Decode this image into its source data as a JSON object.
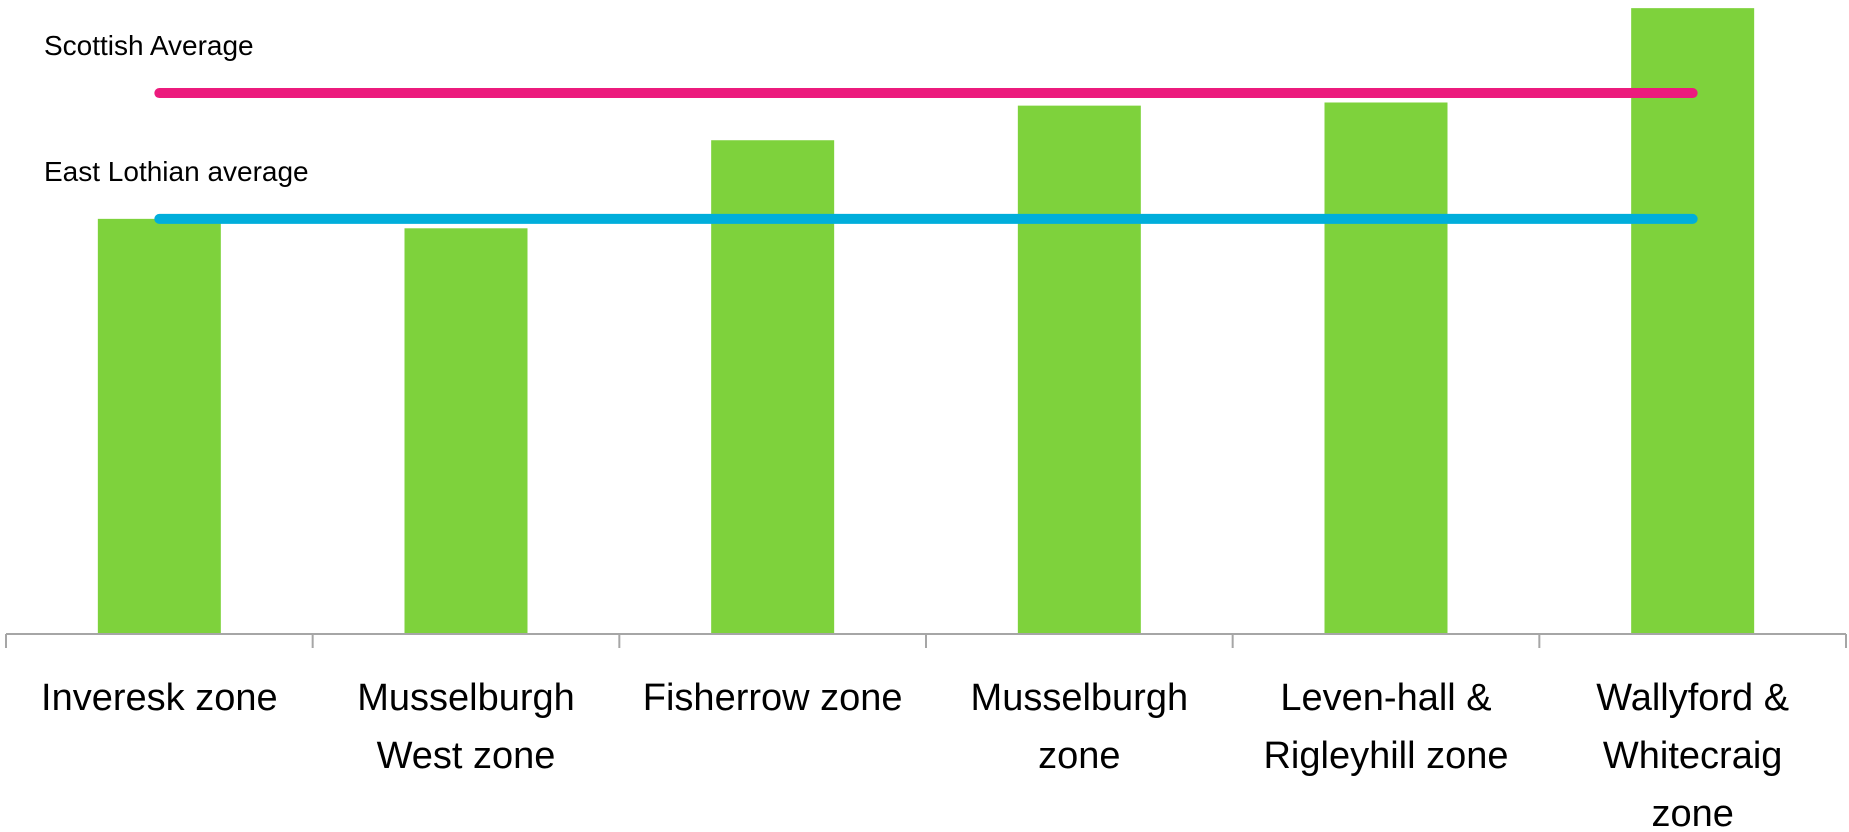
{
  "chart_data": {
    "type": "bar",
    "categories": [
      [
        "Inveresk zone"
      ],
      [
        "Musselburgh",
        "West zone"
      ],
      [
        "Fisherrow zone"
      ],
      [
        "Musselburgh",
        "zone"
      ],
      [
        "Leven-hall &",
        "Rigleyhill zone"
      ],
      [
        "Wallyford &",
        "Whitecraig",
        "zone"
      ]
    ],
    "values": [
      66,
      64.5,
      78.5,
      84,
      84.5,
      99.5
    ],
    "ylim": [
      0,
      100
    ],
    "bar_color": "#7ed23c",
    "grid": false,
    "reference_lines": [
      {
        "label": "Scottish Average",
        "value": 86,
        "color": "#ec1b7d"
      },
      {
        "label": "East Lothian average",
        "value": 66,
        "color": "#00aedb"
      }
    ],
    "axis_color": "#a6a6a6"
  }
}
